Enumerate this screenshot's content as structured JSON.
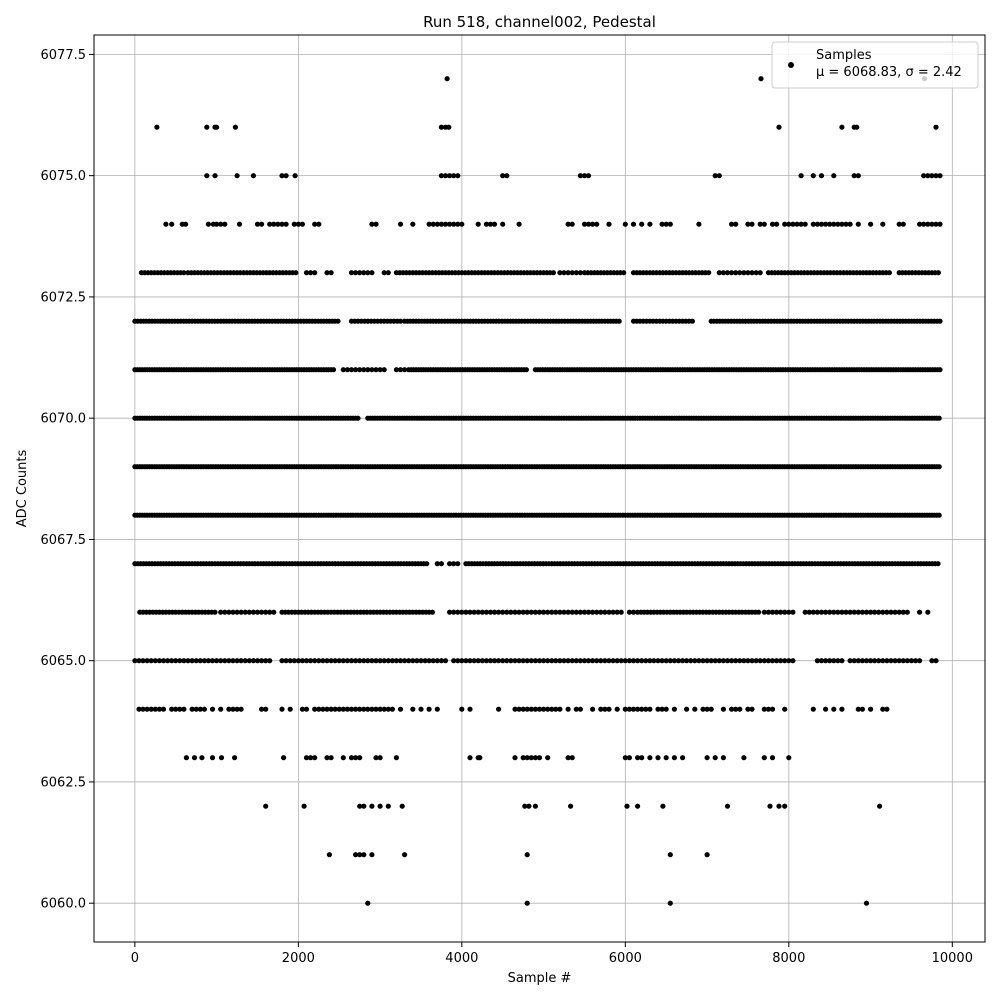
{
  "chart_data": {
    "type": "scatter",
    "title": "Run 518, channel002, Pedestal",
    "xlabel": "Sample #",
    "ylabel": "ADC Counts",
    "xlim": [
      -500,
      10400
    ],
    "ylim": [
      6059.2,
      6077.9
    ],
    "x_ticks": [
      0,
      2000,
      4000,
      6000,
      8000,
      10000
    ],
    "x_tick_labels": [
      "0",
      "2000",
      "4000",
      "6000",
      "8000",
      "10000"
    ],
    "y_ticks": [
      6060.0,
      6062.5,
      6065.0,
      6067.5,
      6070.0,
      6072.5,
      6075.0,
      6077.5
    ],
    "y_tick_labels": [
      "6060.0",
      "6062.5",
      "6065.0",
      "6067.5",
      "6070.0",
      "6072.5",
      "6075.0",
      "6077.5"
    ],
    "grid": true,
    "legend": {
      "placement": "top-right",
      "series_name": "Samples",
      "stats_label": "μ = 6068.83, σ = 2.42"
    },
    "marker_color": "#000000",
    "series": [
      {
        "name": "Samples",
        "levels": [
          {
            "y": 6060,
            "x": [
              2850,
              4800,
              6550,
              8950
            ]
          },
          {
            "y": 6061,
            "x": [
              2380,
              2700,
              2750,
              2800,
              2900,
              3300,
              4800,
              6550,
              7000
            ]
          },
          {
            "y": 6062,
            "x": [
              1600,
              2070,
              2750,
              2800,
              2900,
              3000,
              3100,
              3270,
              4770,
              4820,
              4900,
              5330,
              6020,
              6150,
              6460,
              7250,
              7770,
              7880,
              7950,
              9110
            ]
          },
          {
            "y": 6063,
            "x": [
              630,
              730,
              820,
              950,
              1060,
              1220,
              1820,
              2100,
              2150,
              2200,
              2350,
              2400,
              2550,
              2650,
              2700,
              2750,
              2950,
              3000,
              3200,
              4100,
              4200,
              4220,
              4650,
              4750,
              4800,
              4850,
              4900,
              4950,
              5050,
              5300,
              5350,
              6000,
              6050,
              6150,
              6200,
              6300,
              6400,
              6500,
              6600,
              6700,
              7000,
              7100,
              7200,
              7450,
              7700,
              7800,
              8000
            ]
          },
          {
            "y": 6064,
            "x": [
              50,
              100,
              150,
              200,
              250,
              300,
              350,
              450,
              500,
              550,
              600,
              700,
              750,
              800,
              850,
              950,
              1050,
              1150,
              1200,
              1250,
              1300,
              1550,
              1600,
              1800,
              1900,
              2050,
              2100,
              2200,
              2250,
              2300,
              2350,
              2400,
              2450,
              2500,
              2550,
              2600,
              2650,
              2700,
              2750,
              2800,
              2850,
              2900,
              2950,
              3000,
              3050,
              3100,
              3150,
              3250,
              3400,
              3500,
              3600,
              3700,
              4000,
              4100,
              4450,
              4650,
              4700,
              4750,
              4800,
              4850,
              4900,
              4950,
              5000,
              5050,
              5100,
              5150,
              5200,
              5300,
              5400,
              5450,
              5600,
              5700,
              5750,
              5800,
              5900,
              6000,
              6050,
              6100,
              6150,
              6200,
              6250,
              6300,
              6400,
              6450,
              6500,
              6600,
              6750,
              6850,
              6950,
              7000,
              7050,
              7200,
              7300,
              7350,
              7400,
              7500,
              7550,
              7700,
              7750,
              7800,
              7950,
              8300,
              8450,
              8550,
              8650,
              8850,
              8900,
              9000,
              9150,
              9200
            ]
          },
          {
            "y": 6065,
            "rows": [
              [
                0,
                1650,
                50
              ],
              [
                1800,
                3700,
                50
              ],
              [
                3750,
                3800,
                50
              ],
              [
                3900,
                8050,
                50
              ],
              [
                8350,
                8650,
                50
              ],
              [
                8750,
                9600,
                50
              ],
              [
                9750,
                9800,
                50
              ]
            ]
          },
          {
            "y": 6066,
            "rows": [
              [
                60,
                1000,
                40
              ],
              [
                1050,
                1450,
                50
              ],
              [
                1500,
                1700,
                50
              ],
              [
                1800,
                3650,
                40
              ],
              [
                3850,
                4250,
                50
              ],
              [
                4300,
                4700,
                50
              ],
              [
                4750,
                5200,
                50
              ],
              [
                5250,
                5500,
                50
              ],
              [
                5550,
                5650,
                50
              ],
              [
                5700,
                5800,
                50
              ],
              [
                5850,
                5950,
                50
              ],
              [
                6050,
                6100,
                50
              ],
              [
                6150,
                7650,
                40
              ],
              [
                7700,
                8050,
                50
              ],
              [
                8200,
                8500,
                50
              ],
              [
                8550,
                8800,
                50
              ],
              [
                8850,
                9450,
                50
              ],
              [
                9600,
                9700,
                100
              ]
            ]
          },
          {
            "y": 6067,
            "rows": [
              [
                0,
                3600,
                35
              ],
              [
                3700,
                3750,
                50
              ],
              [
                3850,
                3950,
                50
              ],
              [
                4050,
                9850,
                35
              ]
            ]
          },
          {
            "y": 6068,
            "rows": [
              [
                0,
                9850,
                30
              ]
            ]
          },
          {
            "y": 6069,
            "rows": [
              [
                0,
                9850,
                30
              ]
            ]
          },
          {
            "y": 6070,
            "rows": [
              [
                0,
                2750,
                30
              ],
              [
                2850,
                9850,
                30
              ]
            ]
          },
          {
            "y": 6071,
            "rows": [
              [
                0,
                2450,
                30
              ],
              [
                2550,
                3050,
                50
              ],
              [
                3200,
                3300,
                50
              ],
              [
                3350,
                4800,
                30
              ],
              [
                4900,
                9850,
                30
              ]
            ]
          },
          {
            "y": 6072,
            "rows": [
              [
                0,
                2500,
                35
              ],
              [
                2650,
                3250,
                40
              ],
              [
                3300,
                5950,
                35
              ],
              [
                6100,
                6850,
                40
              ],
              [
                7050,
                9850,
                35
              ]
            ]
          },
          {
            "y": 6073,
            "rows": [
              [
                80,
                600,
                40
              ],
              [
                650,
                2000,
                40
              ],
              [
                2100,
                2200,
                50
              ],
              [
                2350,
                2400,
                50
              ],
              [
                2650,
                2800,
                50
              ],
              [
                2850,
                2900,
                50
              ],
              [
                3050,
                3100,
                50
              ],
              [
                3200,
                5150,
                40
              ],
              [
                5200,
                5450,
                50
              ],
              [
                5500,
                6000,
                40
              ],
              [
                6100,
                7050,
                40
              ],
              [
                7150,
                7350,
                50
              ],
              [
                7400,
                7500,
                50
              ],
              [
                7550,
                7650,
                50
              ],
              [
                7750,
                9250,
                40
              ],
              [
                9350,
                9850,
                40
              ]
            ]
          },
          {
            "y": 6074,
            "x": [
              380,
              450,
              580,
              620,
              900,
              960,
              1000,
              1050,
              1100,
              1280,
              1500,
              1550,
              1650,
              1700,
              1750,
              1800,
              1850,
              1950,
              2000,
              2050,
              2200,
              2250,
              2900,
              2950,
              3250,
              3400,
              3600,
              3650,
              3700,
              3750,
              3800,
              3850,
              3900,
              3950,
              4000,
              4200,
              4300,
              4350,
              4400,
              4500,
              4700,
              5300,
              5350,
              5500,
              5550,
              5600,
              5650,
              5800,
              6000,
              6100,
              6200,
              6300,
              6450,
              6500,
              6550,
              6900,
              7300,
              7350,
              7500,
              7550,
              7650,
              7700,
              7800,
              7850,
              7950,
              8000,
              8050,
              8100,
              8150,
              8200,
              8300,
              8350,
              8400,
              8450,
              8500,
              8550,
              8600,
              8650,
              8700,
              8750,
              8850,
              9000,
              9150,
              9350,
              9400,
              9600,
              9650,
              9700,
              9750,
              9800,
              9850
            ]
          },
          {
            "y": 6075,
            "x": [
              880,
              980,
              1250,
              1450,
              1800,
              1850,
              1960,
              3750,
              3800,
              3850,
              3900,
              3950,
              4500,
              4550,
              5450,
              5500,
              5550,
              7100,
              7150,
              8150,
              8300,
              8400,
              8550,
              8800,
              8850,
              9650,
              9700,
              9750,
              9800,
              9850
            ]
          },
          {
            "y": 6076,
            "x": [
              270,
              880,
              980,
              1000,
              1230,
              3750,
              3800,
              3840,
              7880,
              8650,
              8800,
              8830,
              9800
            ]
          },
          {
            "y": 6077,
            "x": [
              3820,
              7660,
              9660
            ]
          }
        ]
      }
    ]
  }
}
